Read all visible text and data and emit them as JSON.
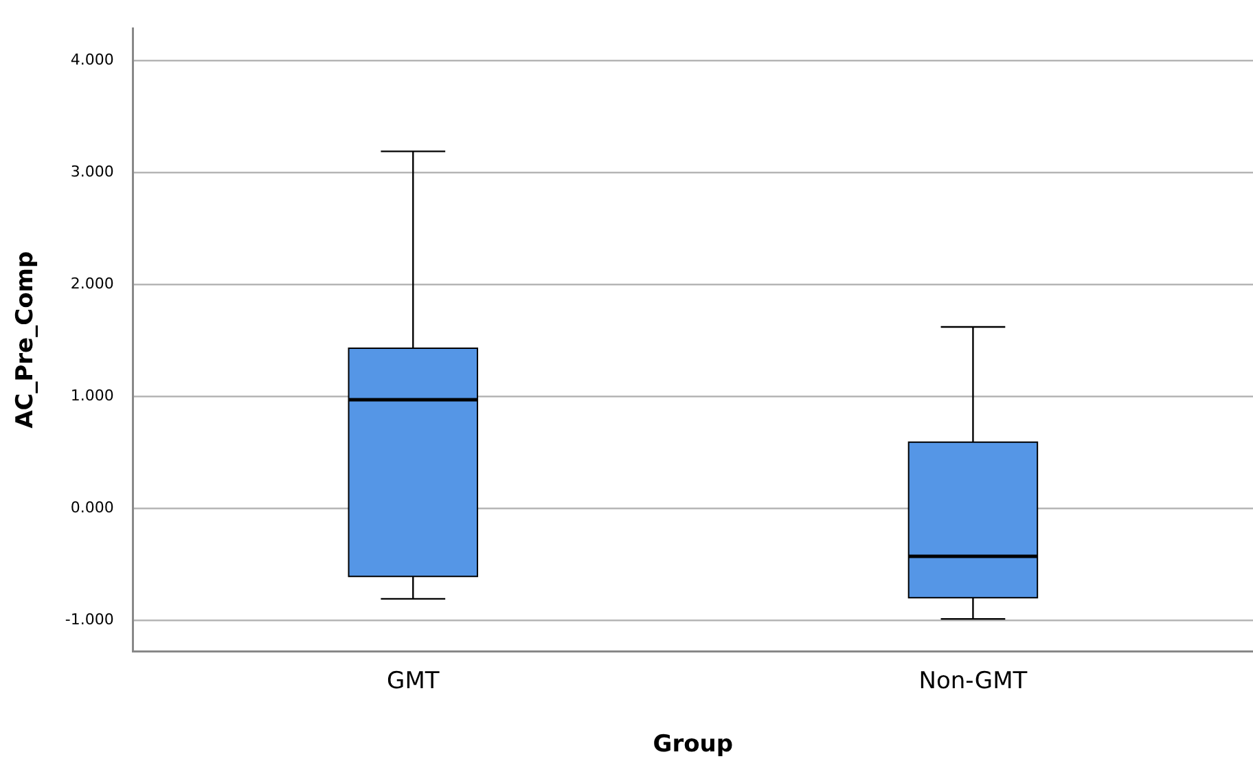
{
  "chart_data": {
    "type": "box",
    "xlabel": "Group",
    "ylabel": "AC_Pre_Comp",
    "categories": [
      "GMT",
      "Non-GMT"
    ],
    "color": "#5596e6",
    "boxes": [
      {
        "low": -0.81,
        "q1": -0.61,
        "median": 0.97,
        "q3": 1.43,
        "high": 3.19
      },
      {
        "low": -0.99,
        "q1": -0.8,
        "median": -0.43,
        "q3": 0.59,
        "high": 1.62
      }
    ],
    "ylim": [
      -1.28,
      4.29
    ],
    "yticks": [
      {
        "value": -1,
        "label": "-1.000"
      },
      {
        "value": 0,
        "label": "0.000"
      },
      {
        "value": 1,
        "label": "1.000"
      },
      {
        "value": 2,
        "label": "2.000"
      },
      {
        "value": 3,
        "label": "3.000"
      },
      {
        "value": 4,
        "label": "4.000"
      }
    ],
    "grid": "y",
    "legend": false
  }
}
